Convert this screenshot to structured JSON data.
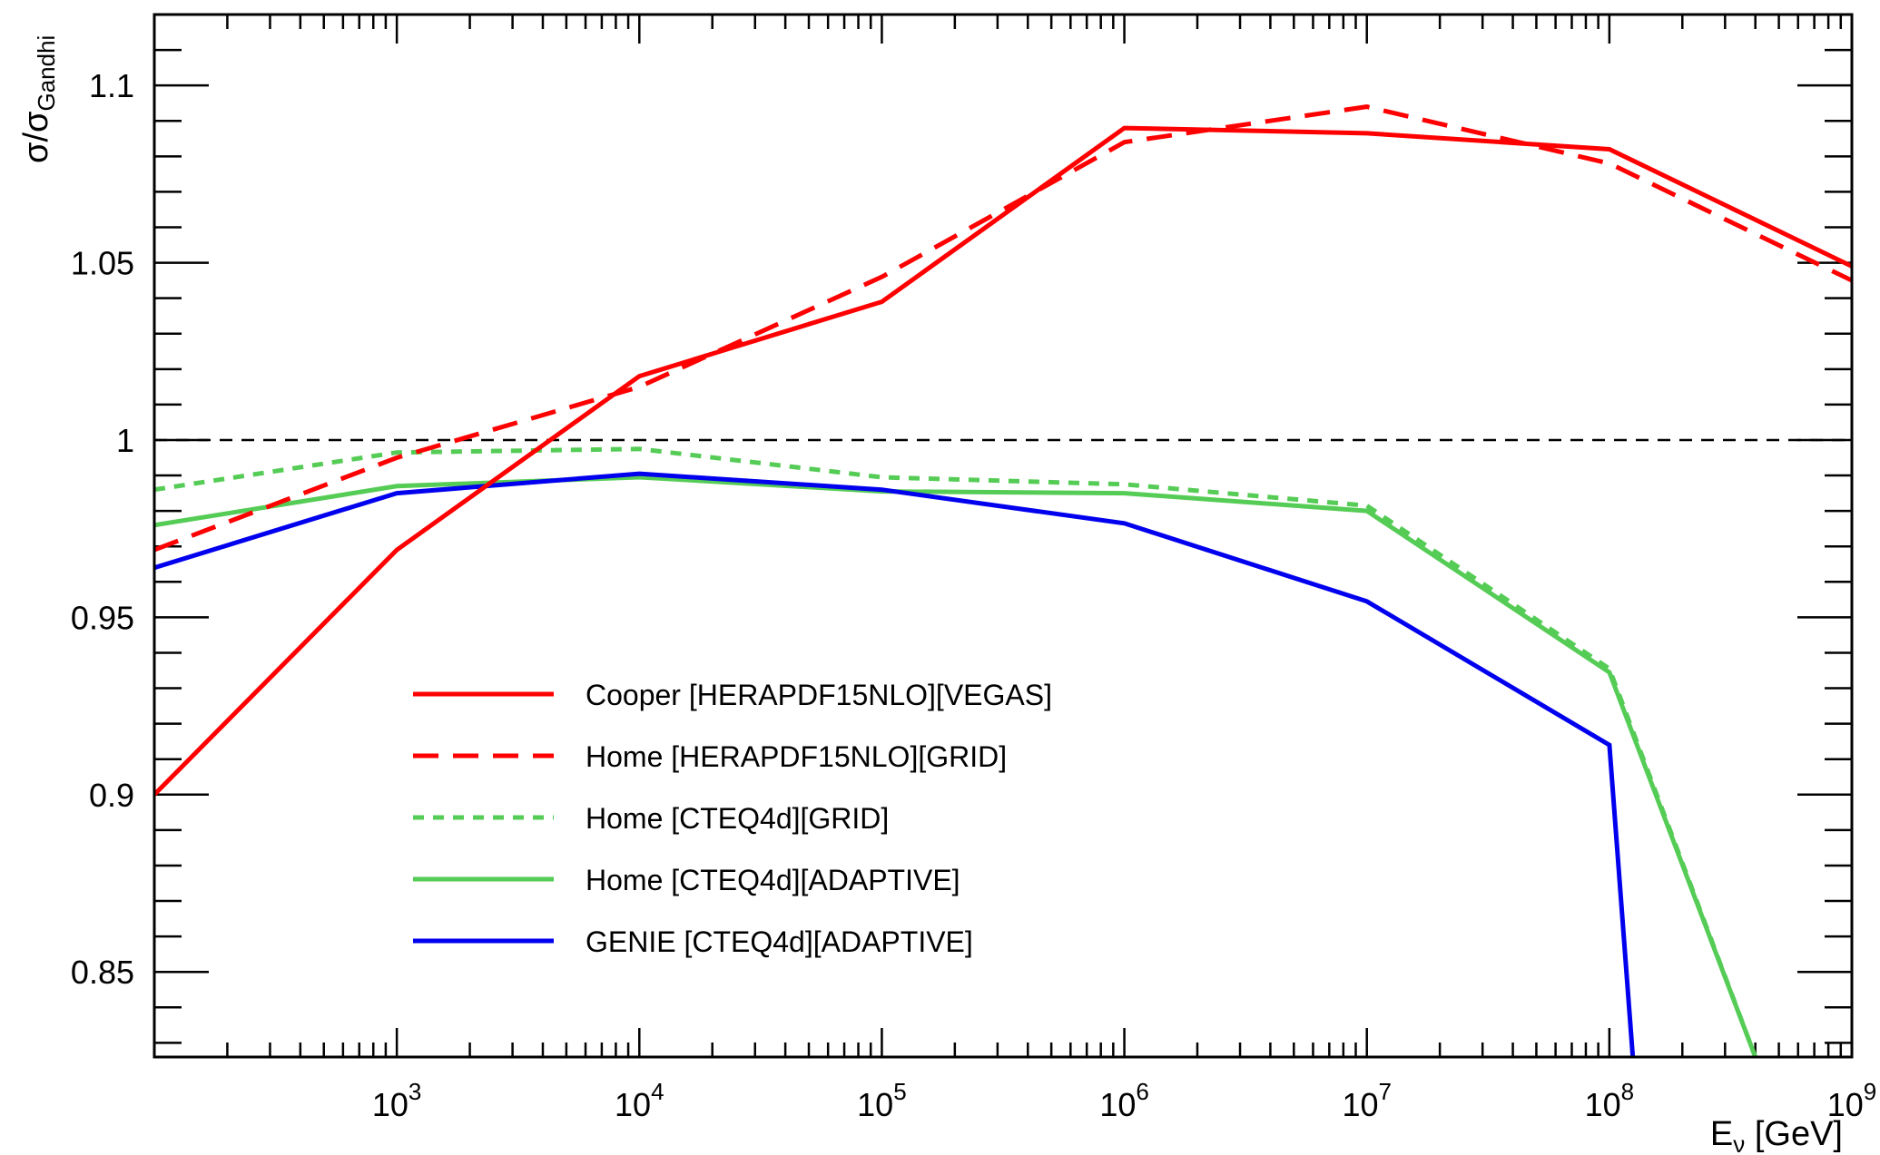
{
  "chart_data": {
    "type": "line",
    "title": "",
    "xlabel": {
      "main": "E",
      "sub": "ν",
      "unit": " [GeV]"
    },
    "ylabel": {
      "main": "σ/σ",
      "sub": "Gandhi"
    },
    "xscale": "log",
    "xlim": [
      100,
      1000000000
    ],
    "ylim": [
      0.826,
      1.12
    ],
    "grid": false,
    "legend_position": "bottom-left",
    "x_tick_labels": [
      {
        "value": 1000,
        "base": "10",
        "exp": "3"
      },
      {
        "value": 10000,
        "base": "10",
        "exp": "4"
      },
      {
        "value": 100000,
        "base": "10",
        "exp": "5"
      },
      {
        "value": 1000000,
        "base": "10",
        "exp": "6"
      },
      {
        "value": 10000000,
        "base": "10",
        "exp": "7"
      },
      {
        "value": 100000000,
        "base": "10",
        "exp": "8"
      },
      {
        "value": 1000000000,
        "base": "10",
        "exp": "9"
      }
    ],
    "y_tick_labels": [
      {
        "value": 0.85,
        "label": "0.85"
      },
      {
        "value": 0.9,
        "label": "0.9"
      },
      {
        "value": 0.95,
        "label": "0.95"
      },
      {
        "value": 1.0,
        "label": "1"
      },
      {
        "value": 1.05,
        "label": "1.05"
      },
      {
        "value": 1.1,
        "label": "1.1"
      }
    ],
    "reference_line": {
      "y": 1.0,
      "style": "dashed",
      "color": "#000000"
    },
    "series": [
      {
        "name": "Cooper [HERAPDF15NLO][VEGAS]",
        "color": "#ff0000",
        "style": "solid",
        "x": [
          100,
          1000,
          10000,
          100000,
          1000000,
          10000000,
          100000000,
          1000000000
        ],
        "y": [
          0.9,
          0.969,
          1.018,
          1.039,
          1.088,
          1.0865,
          1.082,
          1.049
        ]
      },
      {
        "name": "Home [HERAPDF15NLO][GRID]",
        "color": "#ff0000",
        "style": "dashed",
        "x": [
          100,
          1000,
          10000,
          100000,
          1000000,
          10000000,
          100000000,
          1000000000
        ],
        "y": [
          0.969,
          0.995,
          1.015,
          1.046,
          1.084,
          1.094,
          1.078,
          1.045
        ]
      },
      {
        "name": "Home [CTEQ4d][GRID]",
        "color": "#55cc55",
        "style": "dotted",
        "x": [
          100,
          1000,
          10000,
          100000,
          1000000,
          10000000,
          100000000,
          400000000
        ],
        "y": [
          0.986,
          0.9965,
          0.9975,
          0.9895,
          0.9875,
          0.9815,
          0.9355,
          0.826
        ]
      },
      {
        "name": "Home [CTEQ4d][ADAPTIVE]",
        "color": "#55cc55",
        "style": "solid",
        "x": [
          100,
          1000,
          10000,
          100000,
          1000000,
          10000000,
          100000000,
          400000000
        ],
        "y": [
          0.976,
          0.987,
          0.9895,
          0.9855,
          0.985,
          0.98,
          0.9345,
          0.826
        ]
      },
      {
        "name": "GENIE [CTEQ4d][ADAPTIVE]",
        "color": "#0000ee",
        "style": "solid",
        "x": [
          100,
          1000,
          10000,
          100000,
          1000000,
          10000000,
          100000000,
          125000000
        ],
        "y": [
          0.964,
          0.985,
          0.9905,
          0.986,
          0.9765,
          0.9545,
          0.914,
          0.826
        ]
      }
    ]
  }
}
